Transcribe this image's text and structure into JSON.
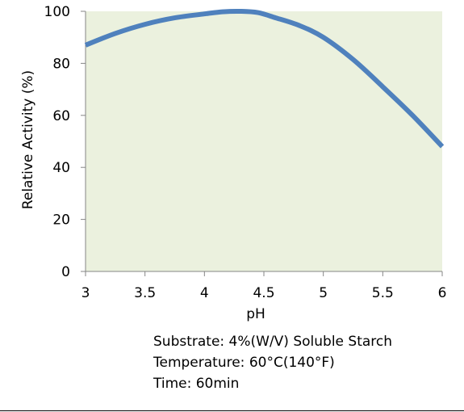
{
  "chart_data": {
    "type": "line",
    "title": "",
    "xlabel": "pH",
    "ylabel": "Relative Activity (%)",
    "xlim": [
      3,
      6
    ],
    "ylim": [
      0,
      100
    ],
    "x_ticks": [
      3,
      3.5,
      4,
      4.5,
      5,
      5.5,
      6
    ],
    "x_tick_labels": [
      "3",
      "3.5",
      "4",
      "4.5",
      "5",
      "5.5",
      "6"
    ],
    "y_ticks": [
      0,
      20,
      40,
      60,
      80,
      100
    ],
    "y_tick_labels": [
      "0",
      "20",
      "40",
      "60",
      "80",
      "100"
    ],
    "grid": false,
    "plot_background": "#EBF1DE",
    "line_color": "#4F81BD",
    "series": [
      {
        "x": [
          3.0,
          3.25,
          3.5,
          3.75,
          4.0,
          4.15,
          4.3,
          4.45,
          4.6,
          4.8,
          5.0,
          5.25,
          5.5,
          5.75,
          6.0
        ],
        "y": [
          87,
          91.5,
          95,
          97.5,
          99,
          99.8,
          100,
          99.5,
          97.5,
          94.5,
          90,
          81.5,
          71,
          60,
          48
        ]
      }
    ]
  },
  "notes": {
    "substrate": "Substrate: 4%(W/V) Soluble Starch",
    "temperature": "Temperature: 60°C(140°F)",
    "time": "Time: 60min"
  }
}
